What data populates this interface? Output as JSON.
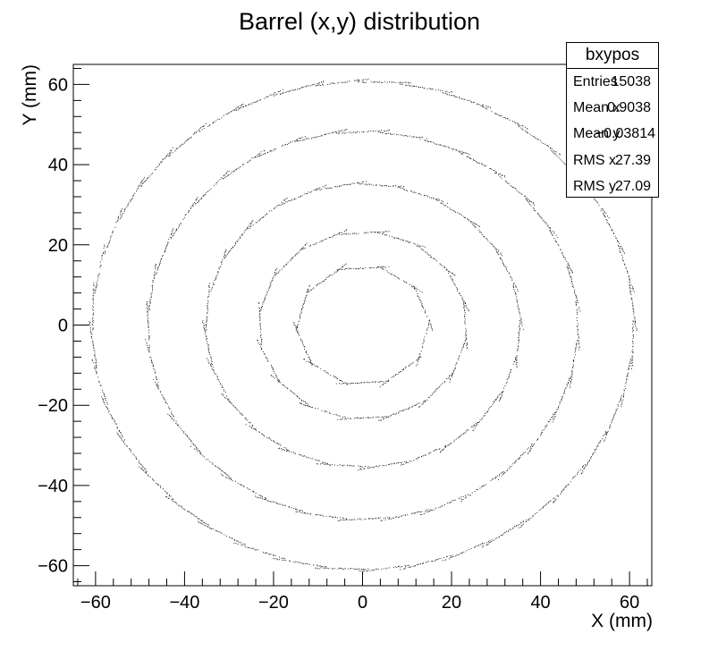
{
  "chart_data": {
    "type": "scatter",
    "title": "Barrel (x,y) distribution",
    "xlabel": "X (mm)",
    "ylabel": "Y (mm)",
    "xlim": [
      -65,
      65
    ],
    "ylim": [
      -65,
      65
    ],
    "x_ticks": [
      -60,
      -40,
      -20,
      0,
      20,
      40,
      60
    ],
    "y_ticks": [
      -60,
      -40,
      -20,
      0,
      20,
      40,
      60
    ],
    "grid": false,
    "marker_color": "#000000",
    "layers": [
      {
        "radius": 15,
        "segments": 10,
        "offset_deg": 0
      },
      {
        "radius": 23.5,
        "segments": 16,
        "offset_deg": 11.25
      },
      {
        "radius": 35.5,
        "segments": 24,
        "offset_deg": 0
      },
      {
        "radius": 48.5,
        "segments": 32,
        "offset_deg": 5.6
      },
      {
        "radius": 61,
        "segments": 40,
        "offset_deg": 0
      }
    ],
    "stats": {
      "name": "bxypos",
      "rows": [
        {
          "label": "Entries",
          "value": "15038"
        },
        {
          "label": "Mean x",
          "value": "0.9038"
        },
        {
          "label": "Mean y",
          "value": "−0.03814"
        },
        {
          "label": "RMS x",
          "value": "27.39"
        },
        {
          "label": "RMS y",
          "value": "27.09"
        }
      ]
    }
  }
}
